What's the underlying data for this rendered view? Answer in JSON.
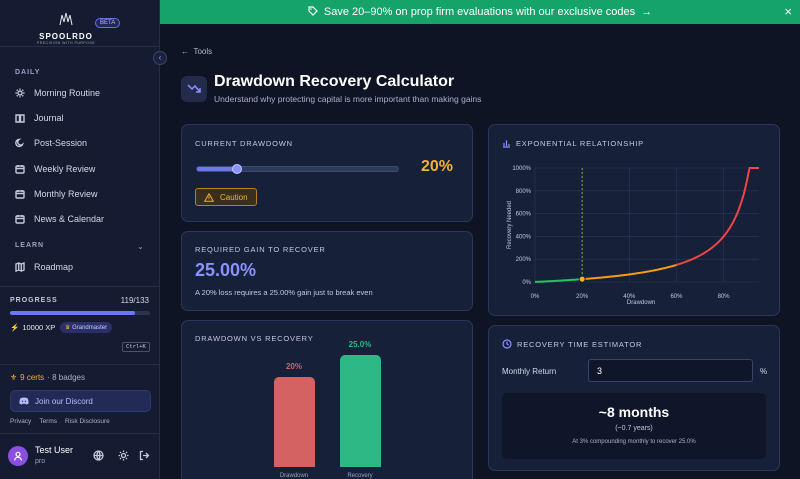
{
  "banner": {
    "text": "Save 20–90% on prop firm evaluations with our exclusive codes",
    "arrow": "→",
    "close": "×"
  },
  "sidebar": {
    "logo_name": "SPOOLRDO",
    "logo_tag": "PRECISION WITH PURPOSE",
    "beta": "BETA",
    "daily_label": "DAILY",
    "daily_items": [
      {
        "label": "Morning Routine",
        "icon": "sun-icon"
      },
      {
        "label": "Journal",
        "icon": "book-icon"
      },
      {
        "label": "Post-Session",
        "icon": "moon-icon"
      },
      {
        "label": "Weekly Review",
        "icon": "calendar-icon"
      },
      {
        "label": "Monthly Review",
        "icon": "calendar-icon"
      },
      {
        "label": "News & Calendar",
        "icon": "calendar-icon"
      }
    ],
    "learn_label": "LEARN",
    "learn_items": [
      {
        "label": "Roadmap",
        "icon": "map-icon"
      }
    ],
    "progress_label": "PROGRESS",
    "progress_value": "119/133",
    "progress_fraction": 0.895,
    "xp": "10000 XP",
    "rank": "Grandmaster",
    "shortcut": "Ctrl+K",
    "certs": "9 certs",
    "badges": " · 8 badges",
    "discord": "Join our Discord",
    "links": [
      "Privacy",
      "Terms",
      "Risk Disclosure"
    ],
    "user_name": "Test User",
    "user_plan": "pro"
  },
  "page": {
    "back": "Tools",
    "title": "Drawdown Recovery Calculator",
    "subtitle": "Understand why protecting capital is more important than making gains"
  },
  "current_drawdown": {
    "heading": "CURRENT DRAWDOWN",
    "value": "20%",
    "fraction": 0.2,
    "badge": "Caution"
  },
  "required_gain": {
    "heading": "REQUIRED GAIN TO RECOVER",
    "value": "25.00%",
    "note": "A 20% loss requires a 25.00% gain just to break even"
  },
  "dd_vs_recovery": {
    "heading": "DRAWDOWN VS RECOVERY",
    "bars": [
      {
        "name": "Drawdown",
        "value": 20,
        "label": "20%",
        "color": "#d46262"
      },
      {
        "name": "Recovery",
        "value": 25,
        "label": "25.0%",
        "color": "#2db885"
      }
    ]
  },
  "exponential": {
    "heading": "EXPONENTIAL RELATIONSHIP"
  },
  "recovery_time": {
    "heading": "RECOVERY TIME ESTIMATOR",
    "monthly_label": "Monthly Return",
    "monthly_value": "3",
    "pct": "%",
    "big": "~8 months",
    "years": "(~0.7 years)",
    "note": "At 3% compounding monthly to recover 25.0%"
  },
  "chart_data": {
    "type": "line",
    "xlabel": "Drawdown",
    "ylabel": "Recovery Needed",
    "x_ticks": [
      "0%",
      "20%",
      "40%",
      "60%",
      "80%"
    ],
    "y_ticks": [
      "0%",
      "200%",
      "400%",
      "600%",
      "800%",
      "1000%"
    ],
    "xlim": [
      0,
      95
    ],
    "ylim": [
      0,
      1000
    ],
    "marker": {
      "x": 20,
      "y": 25
    },
    "colors": {
      "low": "#22c55e",
      "mid": "#f59e0b",
      "high": "#ef4444"
    }
  }
}
